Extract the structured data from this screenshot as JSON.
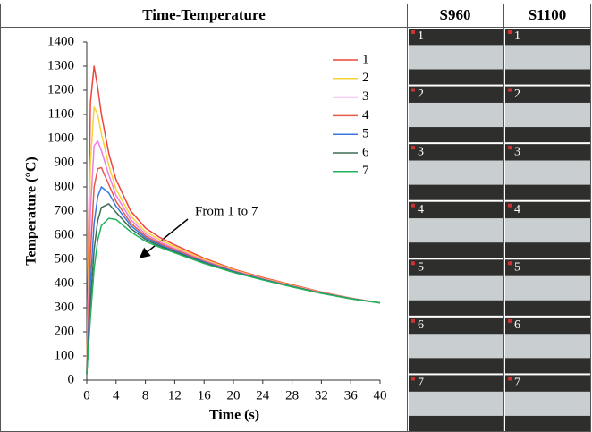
{
  "chart_data": {
    "type": "line",
    "x_label": "Time (s)",
    "y_label": "Temperature (°C)",
    "annotation": "From 1 to 7",
    "x": [
      0,
      0.5,
      1,
      1.5,
      2,
      3,
      4,
      6,
      8,
      10,
      12,
      16,
      20,
      24,
      28,
      32,
      36,
      40
    ],
    "series": [
      {
        "name": "1",
        "color": "#f0443c",
        "values": [
          25,
          1150,
          1300,
          1210,
          1100,
          940,
          830,
          700,
          630,
          590,
          560,
          505,
          460,
          425,
          395,
          365,
          340,
          320
        ]
      },
      {
        "name": "2",
        "color": "#f5d33a",
        "values": [
          25,
          900,
          1130,
          1100,
          1020,
          890,
          790,
          680,
          615,
          580,
          552,
          500,
          457,
          422,
          392,
          363,
          340,
          320
        ]
      },
      {
        "name": "3",
        "color": "#f07ee0",
        "values": [
          25,
          700,
          970,
          990,
          950,
          850,
          765,
          665,
          605,
          572,
          545,
          495,
          454,
          420,
          390,
          362,
          339,
          320
        ]
      },
      {
        "name": "4",
        "color": "#e85a48",
        "values": [
          25,
          520,
          800,
          875,
          880,
          810,
          740,
          650,
          597,
          565,
          540,
          492,
          452,
          418,
          389,
          361,
          338,
          320
        ]
      },
      {
        "name": "5",
        "color": "#3a78e0",
        "values": [
          25,
          400,
          650,
          760,
          800,
          775,
          720,
          640,
          590,
          560,
          535,
          489,
          450,
          417,
          388,
          360,
          338,
          320
        ]
      },
      {
        "name": "6",
        "color": "#3d6b55",
        "values": [
          25,
          320,
          540,
          660,
          715,
          730,
          695,
          628,
          583,
          555,
          531,
          486,
          448,
          416,
          387,
          360,
          337,
          320
        ]
      },
      {
        "name": "7",
        "color": "#1fb35a",
        "values": [
          25,
          260,
          460,
          580,
          640,
          670,
          665,
          614,
          575,
          550,
          527,
          483,
          446,
          415,
          386,
          359,
          337,
          320
        ]
      }
    ],
    "xlim": [
      0,
      40
    ],
    "xticks": [
      0,
      4,
      8,
      12,
      16,
      20,
      24,
      28,
      32,
      36,
      40
    ],
    "ylim": [
      0,
      1400
    ],
    "yticks": [
      0,
      100,
      200,
      300,
      400,
      500,
      600,
      700,
      800,
      900,
      1000,
      1100,
      1200,
      1300,
      1400
    ],
    "grid": false,
    "legend": "upper right"
  },
  "table": {
    "headers": [
      "Time-Temperature",
      "S960",
      "S1100"
    ],
    "s960_labels": [
      "1",
      "2",
      "3",
      "4",
      "5",
      "6",
      "7"
    ],
    "s1100_labels": [
      "1",
      "2",
      "3",
      "4",
      "5",
      "6",
      "7"
    ]
  }
}
